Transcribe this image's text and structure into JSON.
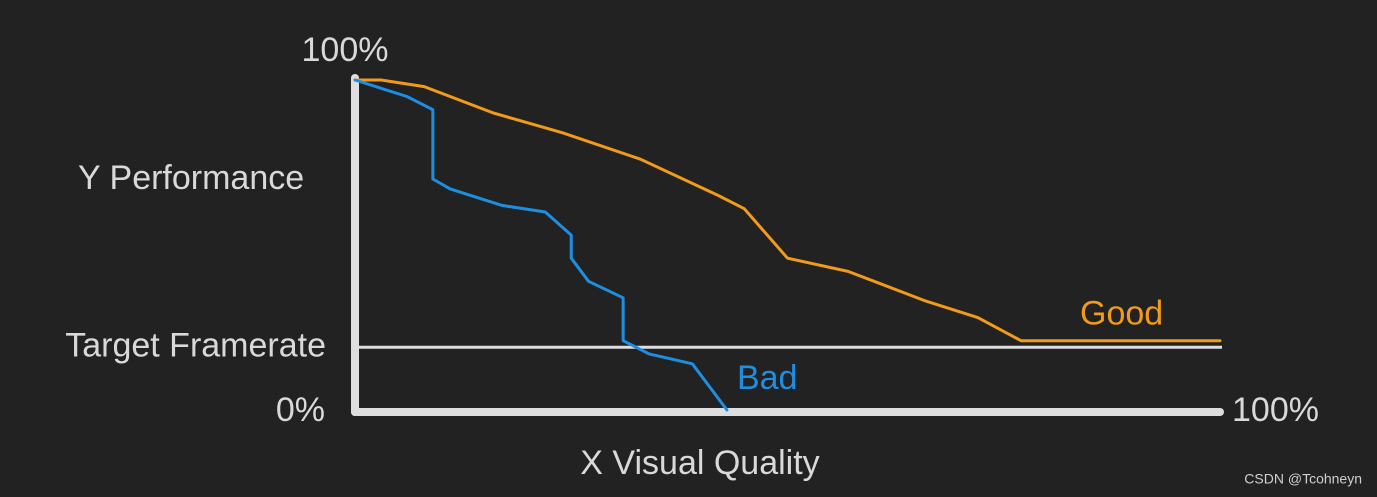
{
  "chart_data": {
    "type": "line",
    "ylabel": "Y Performance",
    "xlabel": "X Visual Quality",
    "xlim": [
      0,
      100
    ],
    "ylim": [
      0,
      100
    ],
    "xticks": [
      {
        "value": 100,
        "label": "100%"
      }
    ],
    "yticks": [
      {
        "value": 0,
        "label": "0%"
      },
      {
        "value": 100,
        "label": "100%"
      }
    ],
    "annotations": [
      {
        "label": "Target Framerate",
        "y": 19
      }
    ],
    "series": [
      {
        "name": "Good",
        "color": "#f29a1a",
        "x": [
          0,
          3,
          8,
          16,
          24,
          33,
          42,
          45,
          50,
          57,
          66,
          72,
          77,
          100
        ],
        "values": [
          100,
          100,
          98,
          90,
          84,
          76,
          65,
          61,
          46,
          42,
          33,
          28,
          21,
          21
        ]
      },
      {
        "name": "Bad",
        "color": "#1e8fe0",
        "x": [
          0,
          6,
          9,
          9,
          11,
          17,
          22,
          25,
          25,
          27,
          31,
          31,
          34,
          39,
          43
        ],
        "values": [
          100,
          95,
          91,
          70,
          67,
          62,
          60,
          53,
          46,
          39,
          34,
          21,
          17,
          14,
          0
        ]
      }
    ],
    "watermark": "CSDN @Tcohneyn"
  }
}
